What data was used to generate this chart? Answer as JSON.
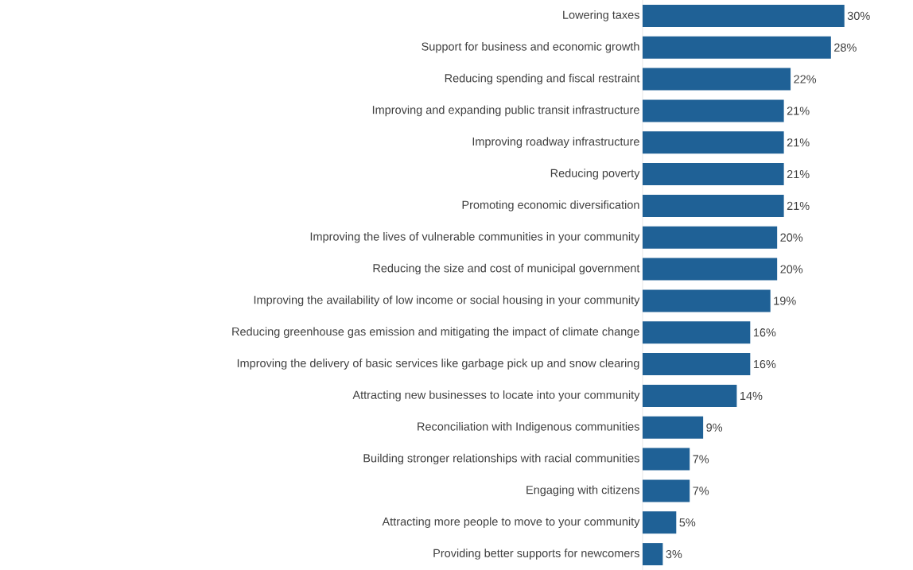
{
  "chart_data": {
    "type": "bar",
    "orientation": "horizontal",
    "color": "#1f6196",
    "categories": [
      "Lowering taxes",
      "Support for business and economic growth",
      "Reducing spending and fiscal restraint",
      "Improving and expanding public transit infrastructure",
      "Improving roadway infrastructure",
      "Reducing poverty",
      "Promoting economic diversification",
      "Improving the lives of vulnerable communities in your community",
      "Reducing the size and cost of municipal government",
      "Improving the availability of low income or social housing in your community",
      "Reducing greenhouse gas emission and mitigating the impact of climate change",
      "Improving the delivery of basic services like garbage pick up and snow clearing",
      "Attracting new businesses to locate into your community",
      "Reconciliation with Indigenous communities",
      "Building stronger relationships with racial communities",
      "Engaging with citizens",
      "Attracting more people to move to your community",
      "Providing better supports for newcomers"
    ],
    "values": [
      30,
      28,
      22,
      21,
      21,
      21,
      21,
      20,
      20,
      19,
      16,
      16,
      14,
      9,
      7,
      7,
      5,
      3
    ],
    "value_labels": [
      "30%",
      "28%",
      "22%",
      "21%",
      "21%",
      "21%",
      "21%",
      "20%",
      "20%",
      "19%",
      "16%",
      "16%",
      "14%",
      "9%",
      "7%",
      "7%",
      "5%",
      "3%"
    ]
  }
}
